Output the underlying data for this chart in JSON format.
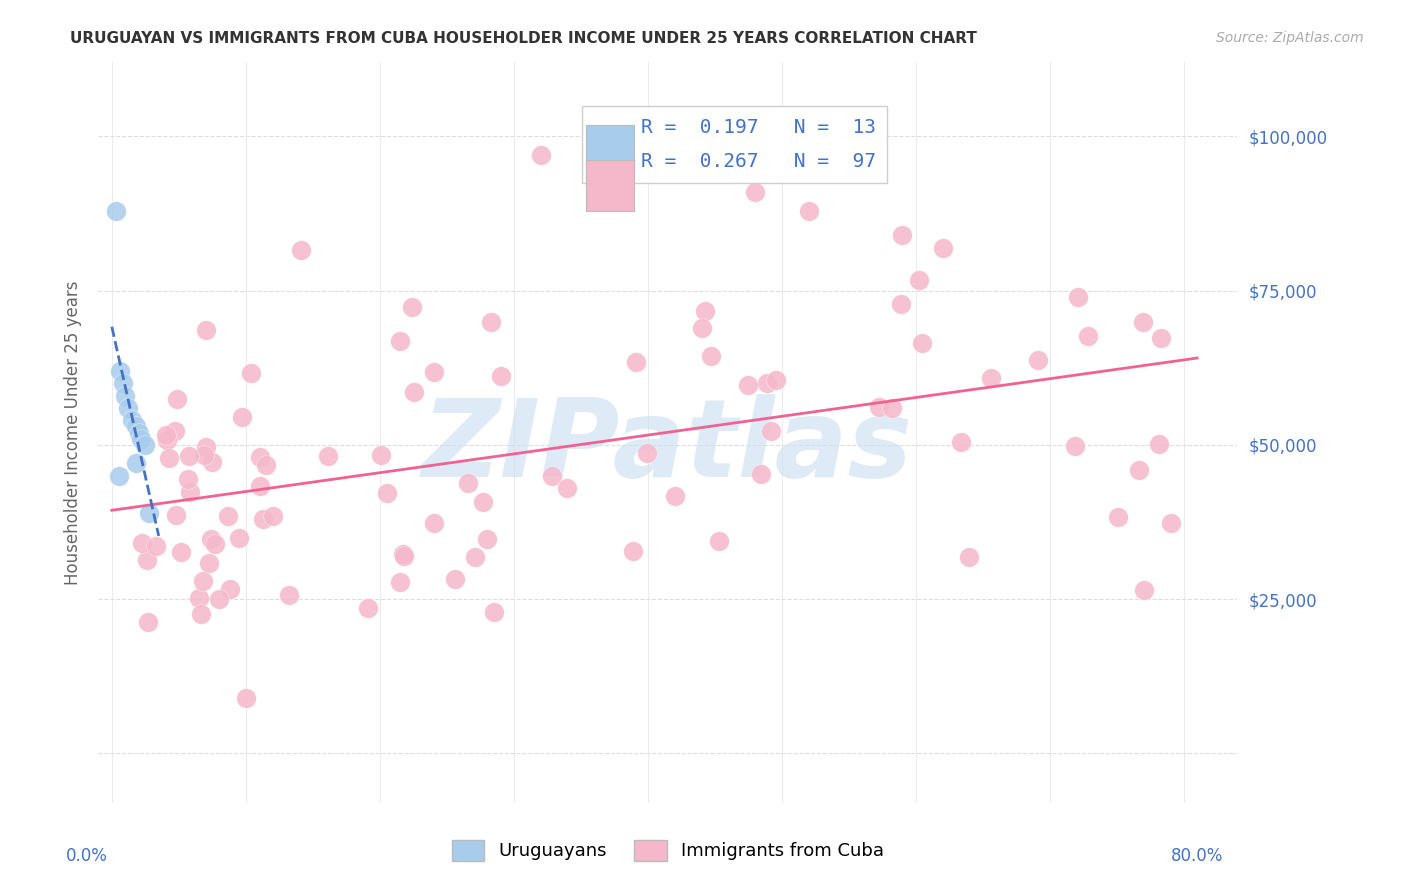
{
  "title": "URUGUAYAN VS IMMIGRANTS FROM CUBA HOUSEHOLDER INCOME UNDER 25 YEARS CORRELATION CHART",
  "source": "Source: ZipAtlas.com",
  "ylabel": "Householder Income Under 25 years",
  "y_ticks": [
    0,
    25000,
    50000,
    75000,
    100000
  ],
  "y_tick_labels": [
    "",
    "$25,000",
    "$50,000",
    "$75,000",
    "$100,000"
  ],
  "legend_label1": "Uruguayans",
  "legend_label2": "Immigrants from Cuba",
  "watermark": "ZIPatlas",
  "R_uru": 0.197,
  "N_uru": 13,
  "R_cuba": 0.267,
  "N_cuba": 97,
  "uruguayan_color": "#a8ccec",
  "cuba_color": "#f5b8cb",
  "uruguayan_line_color": "#4472c4",
  "cuba_line_color": "#f06292",
  "title_color": "#333333",
  "tick_color": "#4472c4",
  "watermark_color": "#c8dff0",
  "background_color": "#ffffff",
  "grid_color": "#dddddd",
  "source_color": "#aaaaaa"
}
